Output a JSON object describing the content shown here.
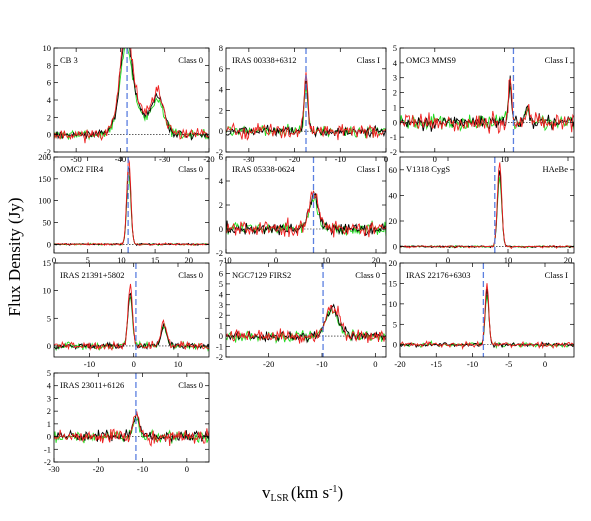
{
  "figure": {
    "ylabel": "Flux Density (Jy)",
    "xlabel_main": "v",
    "xlabel_sub": "LSR",
    "xlabel_unit_a": "(km s",
    "xlabel_unit_exp": "-1",
    "xlabel_unit_b": ")"
  },
  "series_colors": {
    "black": "#000000",
    "green": "#22dd22",
    "red": "#ee2222",
    "blue": "#5b7fe0"
  },
  "chart_data": [
    {
      "type": "line",
      "name": "CB 3",
      "class": "Class 0",
      "xlim": [
        -55,
        -20
      ],
      "ylim": [
        -2,
        10
      ],
      "xticks": [
        -50,
        -40,
        -30,
        -20
      ],
      "yticks": [
        -2,
        0,
        2,
        4,
        6,
        8,
        10
      ],
      "vlsr": -38.5,
      "peaks": [
        [
          -38.8,
          8.0,
          1.2
        ],
        [
          -37.5,
          4.0,
          2.5
        ],
        [
          -31.5,
          4.3,
          1.4
        ]
      ],
      "noise": 0.7
    },
    {
      "type": "line",
      "name": "IRAS 00338+6312",
      "class": "Class I",
      "xlim": [
        -35,
        0
      ],
      "ylim": [
        -2,
        8
      ],
      "xticks": [
        -30,
        -20,
        -10,
        0
      ],
      "yticks": [
        -2,
        0,
        2,
        4,
        6,
        8
      ],
      "vlsr": -17.5,
      "peaks": [
        [
          -17.5,
          5.0,
          0.4
        ]
      ],
      "noise": 0.7
    },
    {
      "type": "line",
      "name": "OMC3 MMS9",
      "class": "Class I",
      "xlim": [
        -5,
        20
      ],
      "ylim": [
        -2,
        5
      ],
      "xticks": [
        0,
        10
      ],
      "yticks": [
        -2,
        -1,
        0,
        1,
        2,
        3,
        4,
        5
      ],
      "vlsr": 11.3,
      "peaks": [
        [
          10.8,
          2.8,
          0.2
        ],
        [
          13.2,
          1.0,
          0.3
        ]
      ],
      "noise": 0.7
    },
    {
      "type": "line",
      "name": "OMC2 FIR4",
      "class": "Class 0",
      "xlim": [
        0,
        23
      ],
      "ylim": [
        -20,
        200
      ],
      "xticks": [
        0,
        5,
        10,
        15,
        20
      ],
      "yticks": [
        0,
        50,
        100,
        150,
        200
      ],
      "vlsr": 11.0,
      "peaks": [
        [
          11.1,
          180,
          0.3
        ]
      ],
      "noise": 2.5
    },
    {
      "type": "line",
      "name": "IRAS 05338-0624",
      "class": "Class I",
      "xlim": [
        -10,
        22
      ],
      "ylim": [
        -2,
        6
      ],
      "xticks": [
        -10,
        0,
        10,
        20
      ],
      "yticks": [
        -2,
        0,
        2,
        4,
        6
      ],
      "vlsr": 7.5,
      "peaks": [
        [
          7.5,
          2.8,
          0.9
        ]
      ],
      "noise": 0.7
    },
    {
      "type": "line",
      "name": "V1318 CygS",
      "class": "HAeBe",
      "xlim": [
        -8,
        21
      ],
      "ylim": [
        -5,
        70
      ],
      "xticks": [
        0,
        10,
        20
      ],
      "yticks": [
        0,
        20,
        40,
        60
      ],
      "vlsr": 7.8,
      "peaks": [
        [
          8.6,
          60,
          0.35
        ]
      ],
      "noise": 1.0
    },
    {
      "type": "line",
      "name": "IRAS 21391+5802",
      "class": "Class 0",
      "xlim": [
        -18,
        17
      ],
      "ylim": [
        -2,
        15
      ],
      "xticks": [
        -10,
        0,
        10
      ],
      "yticks": [
        0,
        5,
        10,
        15
      ],
      "vlsr": 0.5,
      "peaks": [
        [
          -0.8,
          10.0,
          0.5
        ],
        [
          6.8,
          4.0,
          0.6
        ]
      ],
      "noise": 0.8
    },
    {
      "type": "line",
      "name": "NGC7129 FIRS2",
      "class": "Class 0",
      "xlim": [
        -28,
        2
      ],
      "ylim": [
        -2,
        7
      ],
      "xticks": [
        -20,
        -10,
        0
      ],
      "yticks": [
        -2,
        -1,
        0,
        1,
        2,
        3,
        4,
        5,
        6,
        7
      ],
      "vlsr": -9.8,
      "peaks": [
        [
          -8.0,
          2.7,
          1.2
        ]
      ],
      "noise": 0.7
    },
    {
      "type": "line",
      "name": "IRAS 22176+6303",
      "class": "Class I",
      "xlim": [
        -20,
        4
      ],
      "ylim": [
        -3,
        20
      ],
      "xticks": [
        -20,
        -15,
        -10,
        -5,
        0
      ],
      "yticks": [
        0,
        5,
        10,
        15,
        20
      ],
      "vlsr": -8.5,
      "peaks": [
        [
          -8.0,
          13.5,
          0.25
        ]
      ],
      "noise": 0.7
    },
    {
      "type": "line",
      "name": "IRAS 23011+6126",
      "class": "Class 0",
      "xlim": [
        -30,
        5
      ],
      "ylim": [
        -2,
        5
      ],
      "xticks": [
        -30,
        -20,
        -10,
        0
      ],
      "yticks": [
        -2,
        -1,
        0,
        1,
        2,
        3,
        4,
        5
      ],
      "vlsr": -11.5,
      "peaks": [
        [
          -11.5,
          1.6,
          0.7
        ]
      ],
      "noise": 0.6
    }
  ]
}
